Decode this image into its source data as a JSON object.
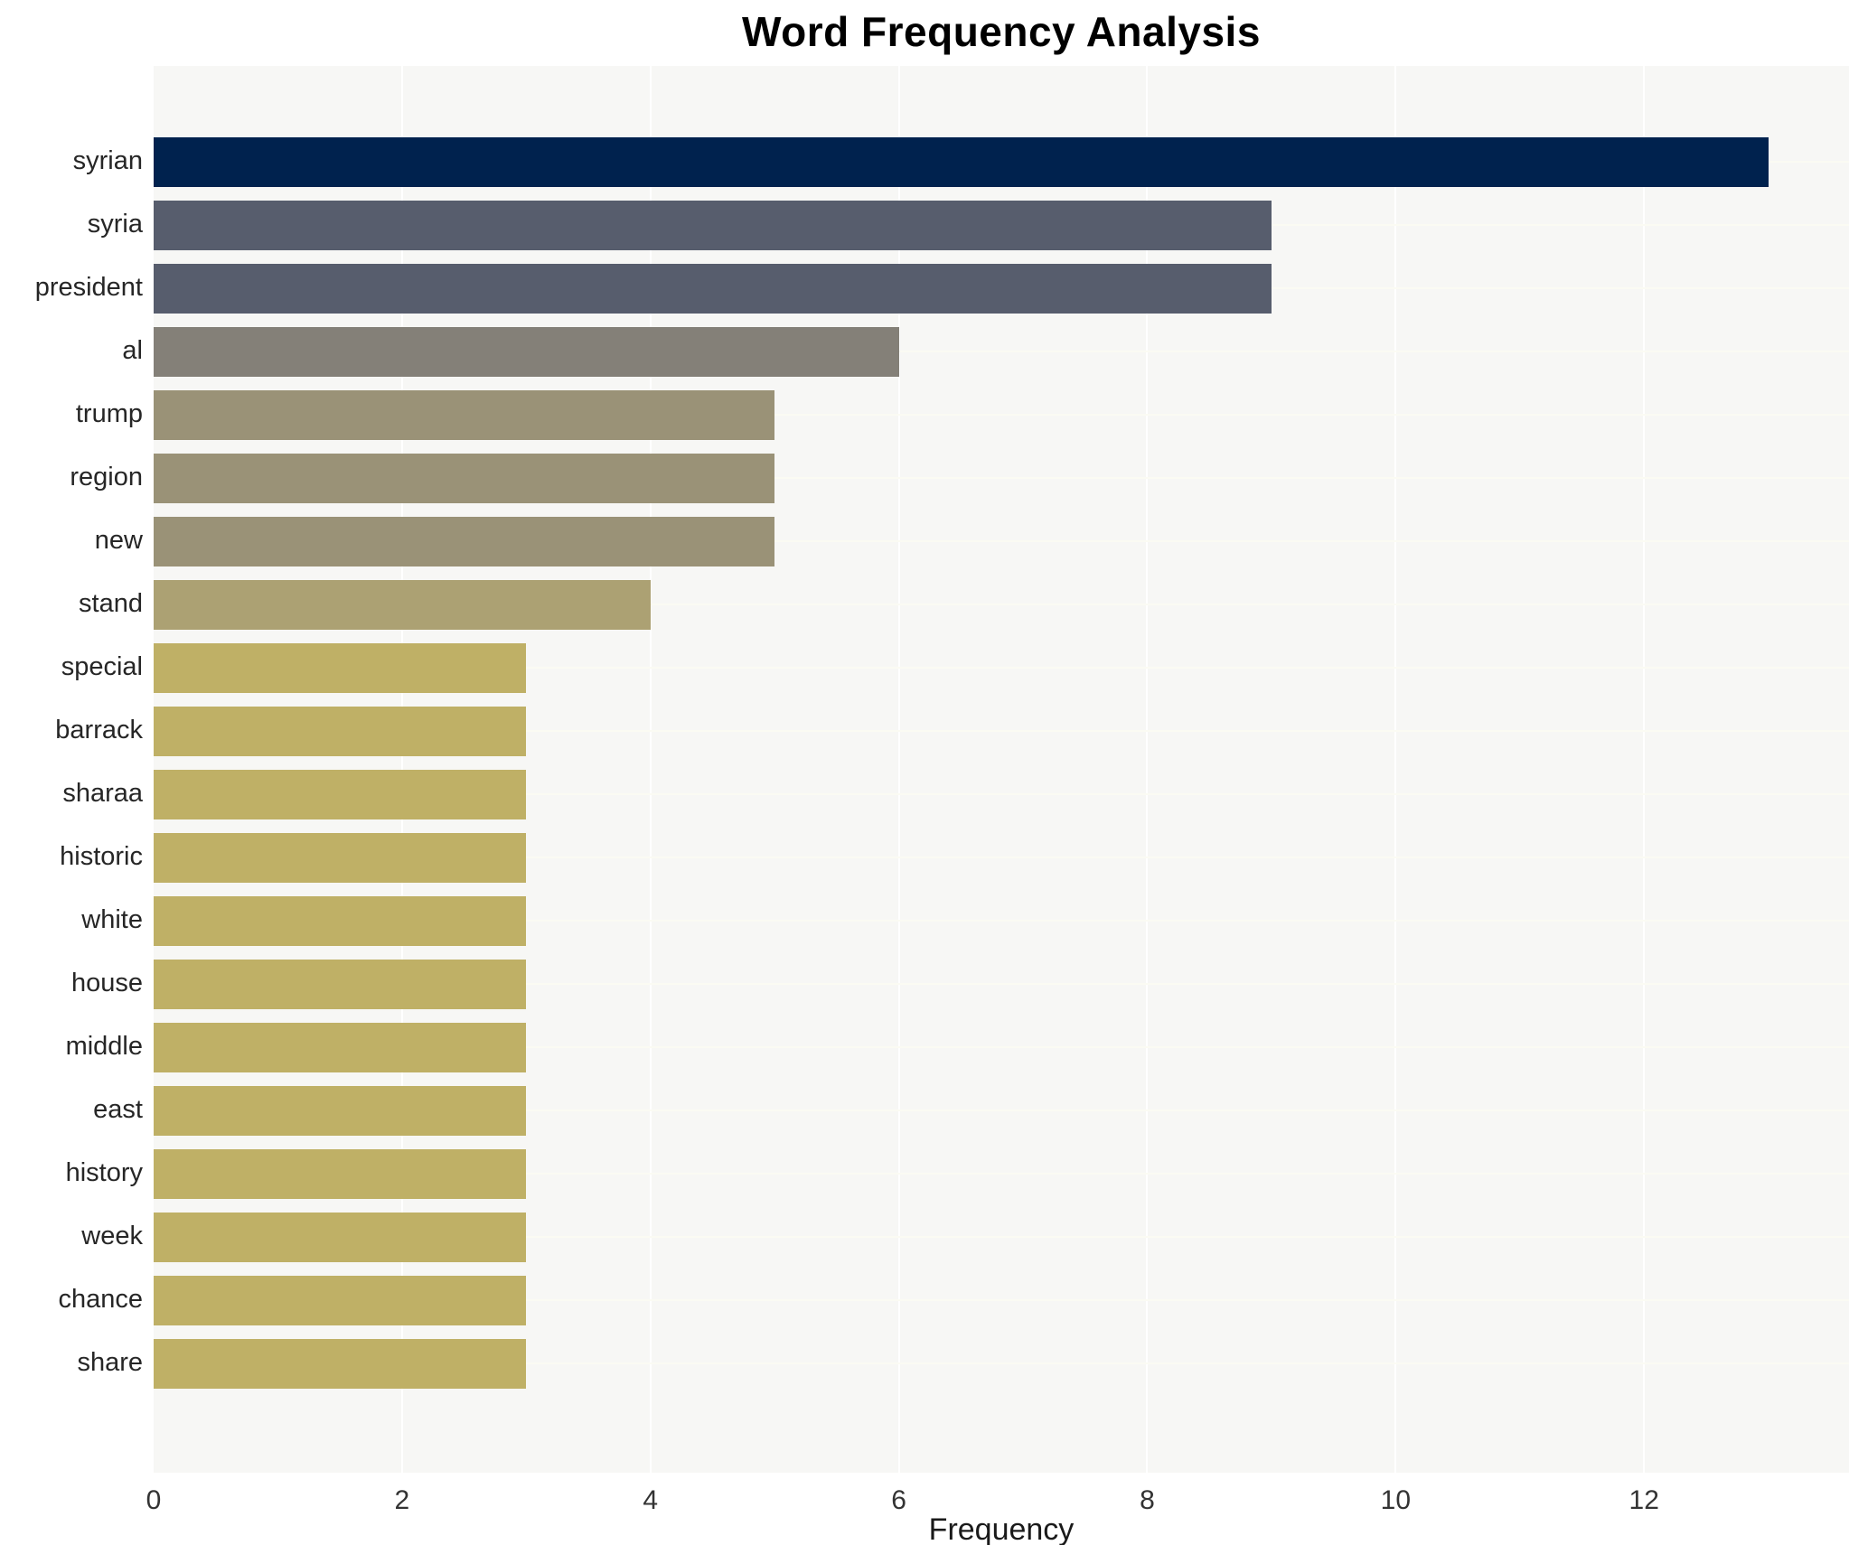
{
  "chart_data": {
    "type": "bar",
    "orientation": "horizontal",
    "title": "Word Frequency Analysis",
    "xlabel": "Frequency",
    "ylabel": "",
    "categories": [
      "syrian",
      "syria",
      "president",
      "al",
      "trump",
      "region",
      "new",
      "stand",
      "special",
      "barrack",
      "sharaa",
      "historic",
      "white",
      "house",
      "middle",
      "east",
      "history",
      "week",
      "chance",
      "share"
    ],
    "values": [
      13,
      9,
      9,
      6,
      5,
      5,
      5,
      4,
      3,
      3,
      3,
      3,
      3,
      3,
      3,
      3,
      3,
      3,
      3,
      3
    ],
    "bar_colors": [
      "#00224e",
      "#575d6d",
      "#575d6d",
      "#848078",
      "#9a9277",
      "#9a9277",
      "#9a9277",
      "#aca173",
      "#bfb066",
      "#bfb066",
      "#bfb066",
      "#bfb066",
      "#bfb066",
      "#bfb066",
      "#bfb066",
      "#bfb066",
      "#bfb066",
      "#bfb066",
      "#bfb066",
      "#bfb066"
    ],
    "xlim": [
      0,
      13.65
    ],
    "xticks": [
      0,
      2,
      4,
      6,
      8,
      10,
      12
    ],
    "grid": true,
    "legend": "none",
    "colors": {
      "plot_background": "#f7f7f5",
      "page_background": "#ffffff",
      "gridline_vertical": "#ffffff",
      "gridline_horizontal": "#fbfbf3",
      "title_text": "#000000",
      "axis_text": "#333333",
      "label_text": "#262626"
    }
  }
}
